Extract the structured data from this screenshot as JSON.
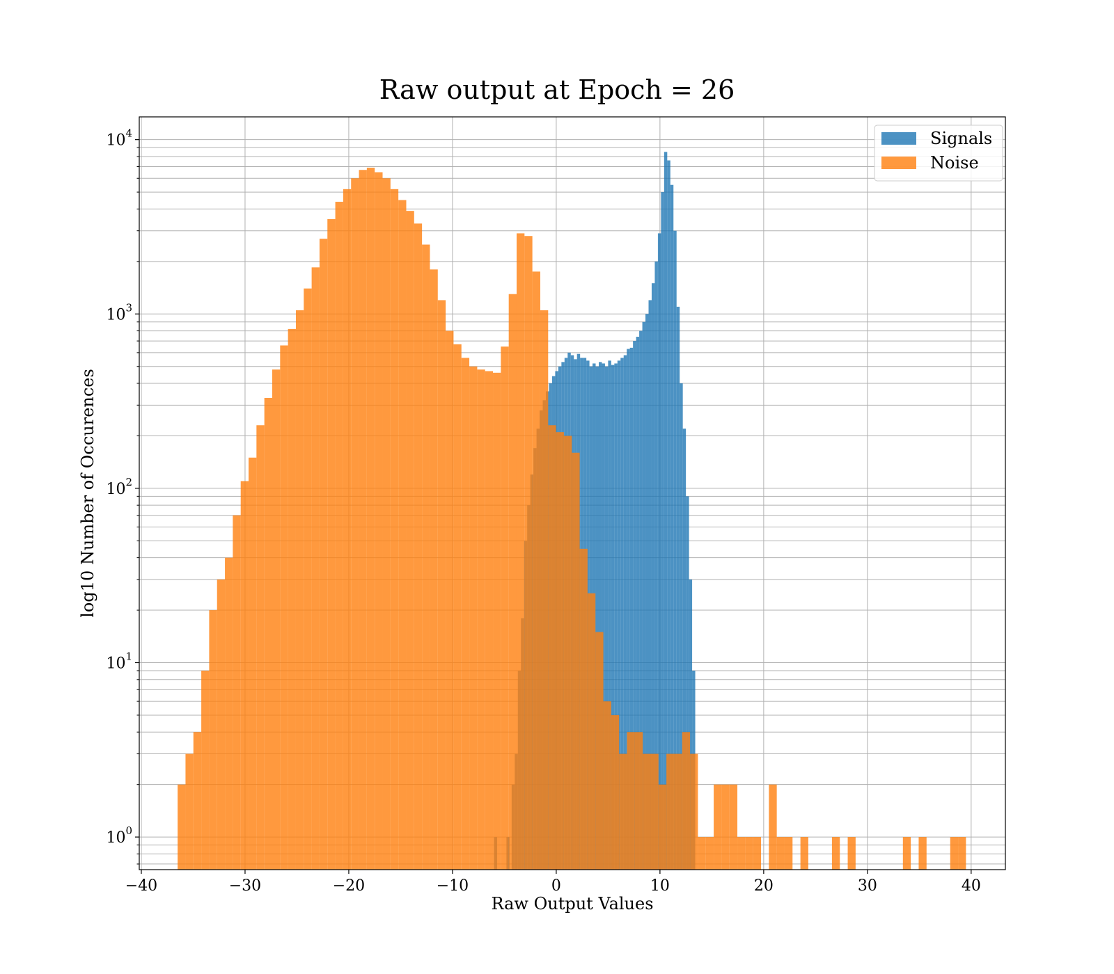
{
  "chart_data": {
    "type": "bar",
    "title": "Raw output at Epoch = 26",
    "xlabel": "Raw Output Values",
    "ylabel": "log10 Number of Occurences",
    "xlim": [
      -40.2,
      43.3
    ],
    "ylim": [
      0.65,
      13500
    ],
    "yscale": "log",
    "grid": true,
    "legend_position": "top-right",
    "xticks": [
      {
        "value": -40,
        "label": "−40"
      },
      {
        "value": -30,
        "label": "−30"
      },
      {
        "value": -20,
        "label": "−20"
      },
      {
        "value": -10,
        "label": "−10"
      },
      {
        "value": 0,
        "label": "0"
      },
      {
        "value": 10,
        "label": "10"
      },
      {
        "value": 20,
        "label": "20"
      },
      {
        "value": 30,
        "label": "30"
      },
      {
        "value": 40,
        "label": "40"
      }
    ],
    "yticks": [
      {
        "value": 1,
        "base": "10",
        "exp": "0"
      },
      {
        "value": 10,
        "base": "10",
        "exp": "1"
      },
      {
        "value": 100,
        "base": "10",
        "exp": "2"
      },
      {
        "value": 1000,
        "base": "10",
        "exp": "3"
      },
      {
        "value": 10000,
        "base": "10",
        "exp": "4"
      }
    ],
    "series": [
      {
        "name": "Signals",
        "color": "#1f77b4",
        "opacity": 0.8,
        "bins": [
          [
            -6.0,
            1
          ],
          [
            -4.8,
            1
          ],
          [
            -4.3,
            2
          ],
          [
            -4.0,
            3
          ],
          [
            -3.7,
            9
          ],
          [
            -3.4,
            18
          ],
          [
            -3.1,
            50
          ],
          [
            -2.8,
            80
          ],
          [
            -2.5,
            120
          ],
          [
            -2.2,
            170
          ],
          [
            -1.9,
            220
          ],
          [
            -1.6,
            280
          ],
          [
            -1.3,
            320
          ],
          [
            -1.0,
            360
          ],
          [
            -0.7,
            400
          ],
          [
            -0.4,
            440
          ],
          [
            -0.1,
            470
          ],
          [
            0.2,
            500
          ],
          [
            0.5,
            530
          ],
          [
            0.8,
            560
          ],
          [
            1.1,
            600
          ],
          [
            1.4,
            580
          ],
          [
            1.7,
            550
          ],
          [
            2.0,
            590
          ],
          [
            2.3,
            560
          ],
          [
            2.6,
            560
          ],
          [
            2.9,
            540
          ],
          [
            3.2,
            500
          ],
          [
            3.5,
            520
          ],
          [
            3.8,
            500
          ],
          [
            4.1,
            530
          ],
          [
            4.4,
            520
          ],
          [
            4.7,
            500
          ],
          [
            5.0,
            540
          ],
          [
            5.3,
            510
          ],
          [
            5.6,
            520
          ],
          [
            5.9,
            540
          ],
          [
            6.2,
            560
          ],
          [
            6.5,
            580
          ],
          [
            6.8,
            630
          ],
          [
            7.1,
            640
          ],
          [
            7.4,
            700
          ],
          [
            7.7,
            740
          ],
          [
            8.0,
            800
          ],
          [
            8.3,
            900
          ],
          [
            8.6,
            1000
          ],
          [
            8.9,
            1200
          ],
          [
            9.2,
            1500
          ],
          [
            9.5,
            2000
          ],
          [
            9.8,
            2900
          ],
          [
            10.1,
            5000
          ],
          [
            10.4,
            8500
          ],
          [
            10.7,
            7600
          ],
          [
            11.0,
            5500
          ],
          [
            11.3,
            3000
          ],
          [
            11.6,
            1100
          ],
          [
            11.9,
            400
          ],
          [
            12.2,
            220
          ],
          [
            12.5,
            90
          ],
          [
            12.8,
            30
          ],
          [
            13.1,
            9
          ]
        ],
        "bin_width": 0.3
      },
      {
        "name": "Noise",
        "color": "#ff7f0e",
        "opacity": 0.8,
        "bins": [
          [
            -36.5,
            2
          ],
          [
            -35.74,
            3
          ],
          [
            -34.98,
            4
          ],
          [
            -34.22,
            9
          ],
          [
            -33.46,
            20
          ],
          [
            -32.7,
            30
          ],
          [
            -31.94,
            40
          ],
          [
            -31.18,
            70
          ],
          [
            -30.42,
            110
          ],
          [
            -29.66,
            150
          ],
          [
            -28.9,
            230
          ],
          [
            -28.14,
            330
          ],
          [
            -27.38,
            480
          ],
          [
            -26.62,
            660
          ],
          [
            -25.86,
            820
          ],
          [
            -25.1,
            1050
          ],
          [
            -24.34,
            1400
          ],
          [
            -23.58,
            1850
          ],
          [
            -22.82,
            2700
          ],
          [
            -22.06,
            3500
          ],
          [
            -21.3,
            4400
          ],
          [
            -20.54,
            5200
          ],
          [
            -19.78,
            6000
          ],
          [
            -19.02,
            6700
          ],
          [
            -18.26,
            6900
          ],
          [
            -17.5,
            6500
          ],
          [
            -16.74,
            6000
          ],
          [
            -15.98,
            5200
          ],
          [
            -15.22,
            4500
          ],
          [
            -14.46,
            3900
          ],
          [
            -13.7,
            3300
          ],
          [
            -12.94,
            2500
          ],
          [
            -12.18,
            1800
          ],
          [
            -11.42,
            1200
          ],
          [
            -10.66,
            800
          ],
          [
            -9.9,
            670
          ],
          [
            -9.14,
            560
          ],
          [
            -8.38,
            500
          ],
          [
            -7.62,
            480
          ],
          [
            -6.86,
            470
          ],
          [
            -6.1,
            460
          ],
          [
            -5.34,
            650
          ],
          [
            -4.58,
            1300
          ],
          [
            -3.82,
            2900
          ],
          [
            -3.06,
            2800
          ],
          [
            -2.3,
            1750
          ],
          [
            -1.54,
            1050
          ],
          [
            -0.78,
            230
          ],
          [
            -0.02,
            210
          ],
          [
            0.74,
            200
          ],
          [
            1.5,
            160
          ],
          [
            2.26,
            45
          ],
          [
            3.02,
            25
          ],
          [
            3.78,
            15
          ],
          [
            4.54,
            6
          ],
          [
            5.3,
            5
          ],
          [
            6.06,
            3
          ],
          [
            6.82,
            4
          ],
          [
            7.58,
            4
          ],
          [
            8.34,
            3
          ],
          [
            9.1,
            3
          ],
          [
            9.86,
            2
          ],
          [
            10.62,
            3
          ],
          [
            11.38,
            3
          ],
          [
            12.14,
            4
          ],
          [
            12.9,
            3
          ],
          [
            13.66,
            1
          ],
          [
            14.42,
            1
          ],
          [
            15.18,
            2
          ],
          [
            15.94,
            2
          ],
          [
            16.7,
            2
          ],
          [
            17.46,
            1
          ],
          [
            18.22,
            1
          ],
          [
            18.98,
            1
          ],
          [
            20.5,
            2
          ],
          [
            21.26,
            1
          ],
          [
            22.02,
            1
          ],
          [
            23.54,
            1
          ],
          [
            26.58,
            1
          ],
          [
            28.1,
            1
          ],
          [
            33.42,
            1
          ],
          [
            34.94,
            1
          ],
          [
            37.98,
            1
          ],
          [
            38.74,
            1
          ]
        ],
        "bin_width": 0.76
      }
    ]
  }
}
